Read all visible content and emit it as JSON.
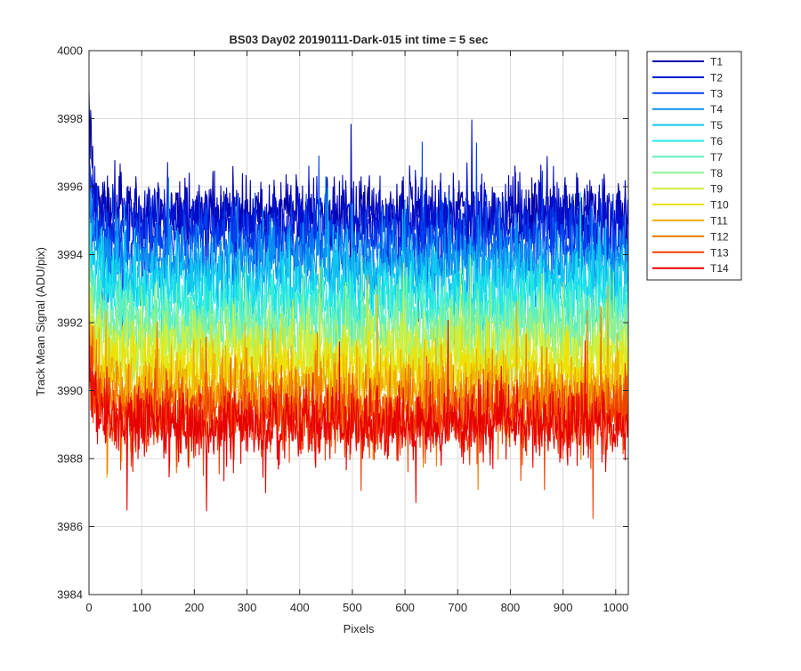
{
  "chart_data": {
    "type": "line",
    "title": "BS03 Day02 20190111-Dark-015 int time = 5 sec",
    "xlabel": "Pixels",
    "ylabel": "Track Mean Signal (ADU/pix)",
    "xlim": [
      0,
      1024
    ],
    "ylim": [
      3984,
      4000
    ],
    "x_ticks": [
      0,
      100,
      200,
      300,
      400,
      500,
      600,
      700,
      800,
      900,
      1000
    ],
    "y_ticks": [
      3984,
      3986,
      3988,
      3990,
      3992,
      3994,
      3996,
      3998,
      4000
    ],
    "grid": true,
    "legend_position": "outside-top-right",
    "n_points": 1024,
    "series": [
      {
        "name": "T1",
        "color": "#0000AA",
        "mean": 3995.2,
        "spread": 0.55,
        "max": 3999.1
      },
      {
        "name": "T2",
        "color": "#0010D0",
        "mean": 3994.9,
        "spread": 0.55,
        "max": 3998.0
      },
      {
        "name": "T3",
        "color": "#0040F0",
        "mean": 3994.4,
        "spread": 0.55,
        "max": 3997.2
      },
      {
        "name": "T4",
        "color": "#0A90F0",
        "mean": 3993.8,
        "spread": 0.55,
        "max": 3996.6
      },
      {
        "name": "T5",
        "color": "#10C8F0",
        "mean": 3993.2,
        "spread": 0.55,
        "max": 3996.0
      },
      {
        "name": "T6",
        "color": "#20E8E8",
        "mean": 3992.6,
        "spread": 0.55,
        "max": 3995.3
      },
      {
        "name": "T7",
        "color": "#60F0C0",
        "mean": 3992.1,
        "spread": 0.55,
        "max": 3994.8
      },
      {
        "name": "T8",
        "color": "#90F090",
        "mean": 3991.6,
        "spread": 0.55,
        "max": 3994.2
      },
      {
        "name": "T9",
        "color": "#D0F040",
        "mean": 3991.1,
        "spread": 0.55,
        "max": 3993.8
      },
      {
        "name": "T10",
        "color": "#F0E000",
        "mean": 3990.6,
        "spread": 0.55,
        "max": 3993.4
      },
      {
        "name": "T11",
        "color": "#F0B000",
        "mean": 3990.1,
        "spread": 0.55,
        "max": 3993.0
      },
      {
        "name": "T12",
        "color": "#F07800",
        "mean": 3989.6,
        "spread": 0.55,
        "max": 3992.6
      },
      {
        "name": "T13",
        "color": "#F04000",
        "mean": 3989.2,
        "spread": 0.55,
        "max": 3992.3
      },
      {
        "name": "T14",
        "color": "#E80000",
        "mean": 3989.0,
        "spread": 0.55,
        "max": 3992.0
      }
    ]
  }
}
